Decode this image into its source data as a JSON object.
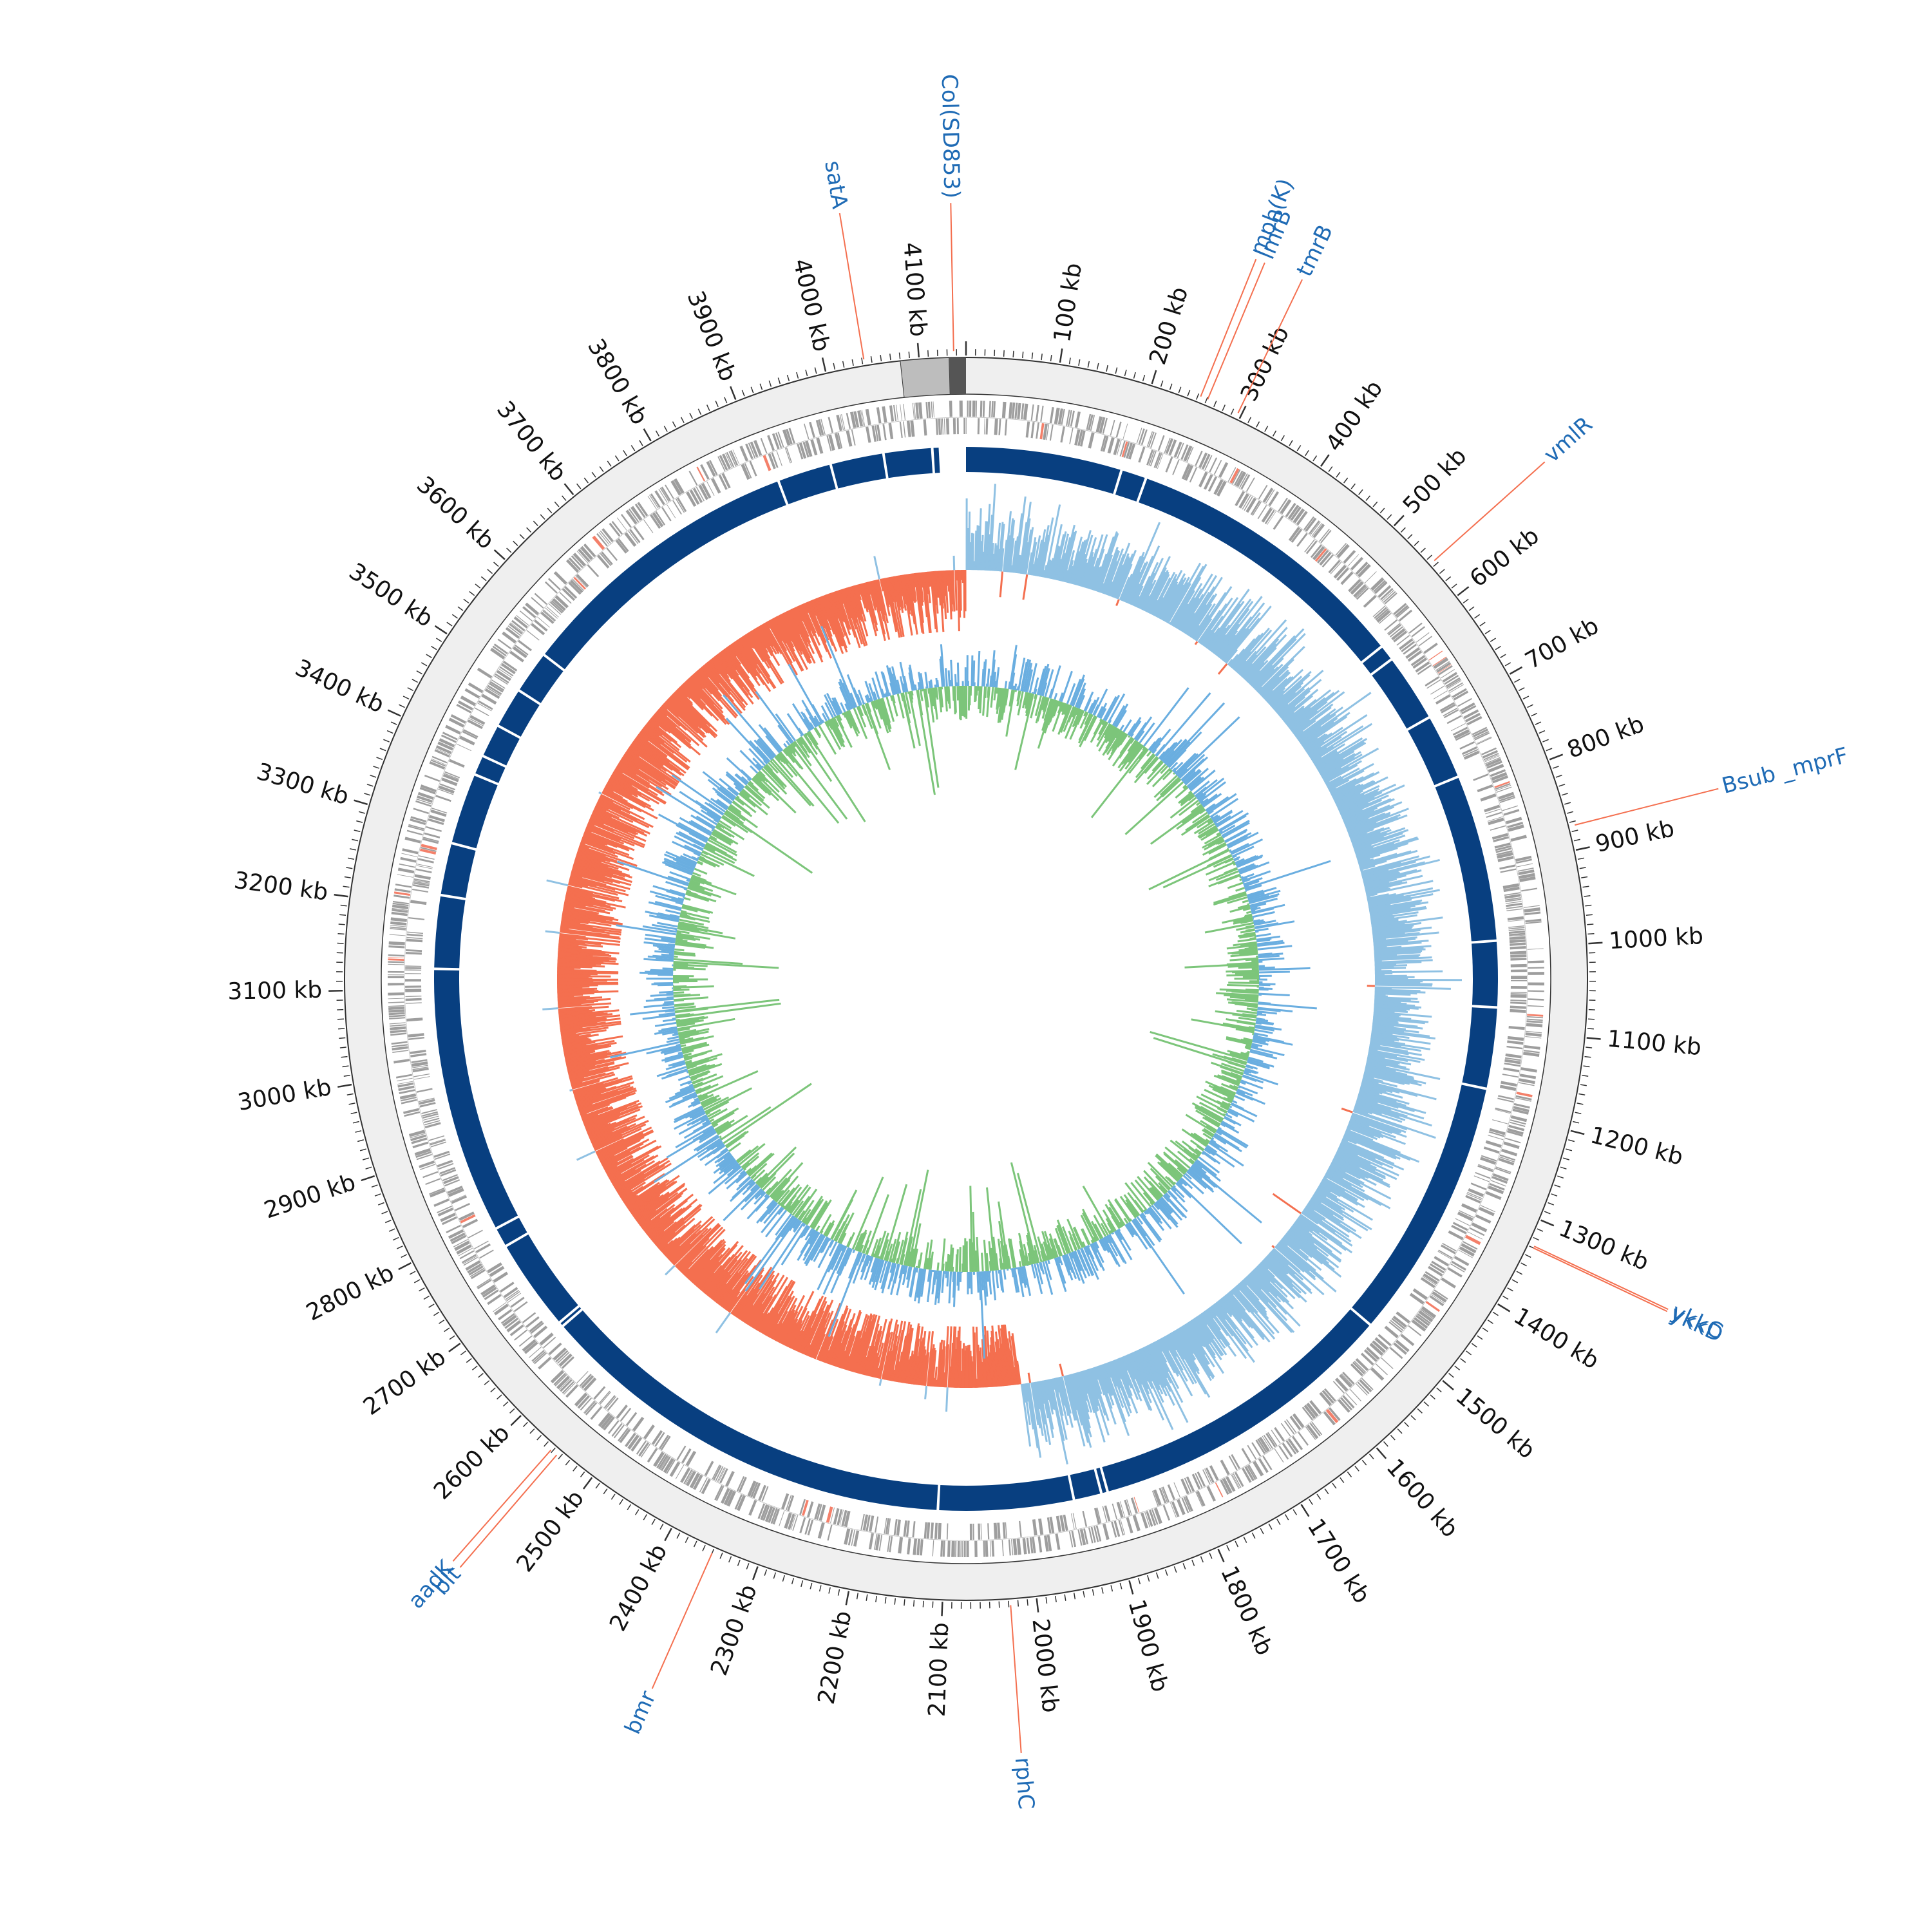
{
  "genome": {
    "length_kb": 4150,
    "tick_label_interval_kb": 100,
    "minor_tick_interval_kb": 10,
    "tick_label_suffix": " kb"
  },
  "colors": {
    "background_ring": "#efefef",
    "ring_outline": "#333333",
    "tick": "#333333",
    "cds_gray": "#9e9e9e",
    "cds_red": "#f4806a",
    "contig_blue": "#083f80",
    "gc_skew_positive": "#8fc1e3",
    "gc_skew_negative": "#f46f4f",
    "gc_content_blue": "#6aaee0",
    "gc_content_green": "#7cc57a",
    "annotation_text": "#1f6bb5",
    "annotation_line": "#f46f4f",
    "plasmid_light": "#bdbdbd",
    "plasmid_dark": "#555555"
  },
  "plasmid_marker": {
    "name": "Col(SD853)",
    "light_segment_kb": [
      4080,
      4132
    ],
    "dark_segment_kb": [
      4132,
      4150
    ]
  },
  "contig_gaps_kb": [
    0,
    4108,
    4047,
    3980,
    3912,
    3545,
    3491,
    3440,
    3398,
    3373,
    3283,
    3217,
    3125,
    2790,
    2765,
    2649,
    2643,
    2110,
    1940,
    1905,
    1897,
    1505,
    1175,
    1073,
    990,
    780,
    698,
    612,
    592,
    228,
    196
  ],
  "annotations": [
    {
      "label": "Col(SD853)",
      "position_kb": 4137
    },
    {
      "label": "satA",
      "position_kb": 4042
    },
    {
      "label": "mph(K)",
      "position_kb": 253
    },
    {
      "label": "lmrB",
      "position_kb": 261
    },
    {
      "label": "tmrB",
      "position_kb": 296
    },
    {
      "label": "vmlR",
      "position_kb": 556
    },
    {
      "label": "Bsub _mprF",
      "position_kb": 874
    },
    {
      "label": "ykkC",
      "position_kb": 1328
    },
    {
      "label": "ykkD",
      "position_kb": 1330
    },
    {
      "label": "rphC",
      "position_kb": 2028
    },
    {
      "label": "bmr",
      "position_kb": 2350
    },
    {
      "label": "aadK",
      "position_kb": 2552
    },
    {
      "label": "blt",
      "position_kb": 2544
    }
  ],
  "tracks": [
    "CDS features",
    "Contigs",
    "GC skew",
    "GC content"
  ]
}
